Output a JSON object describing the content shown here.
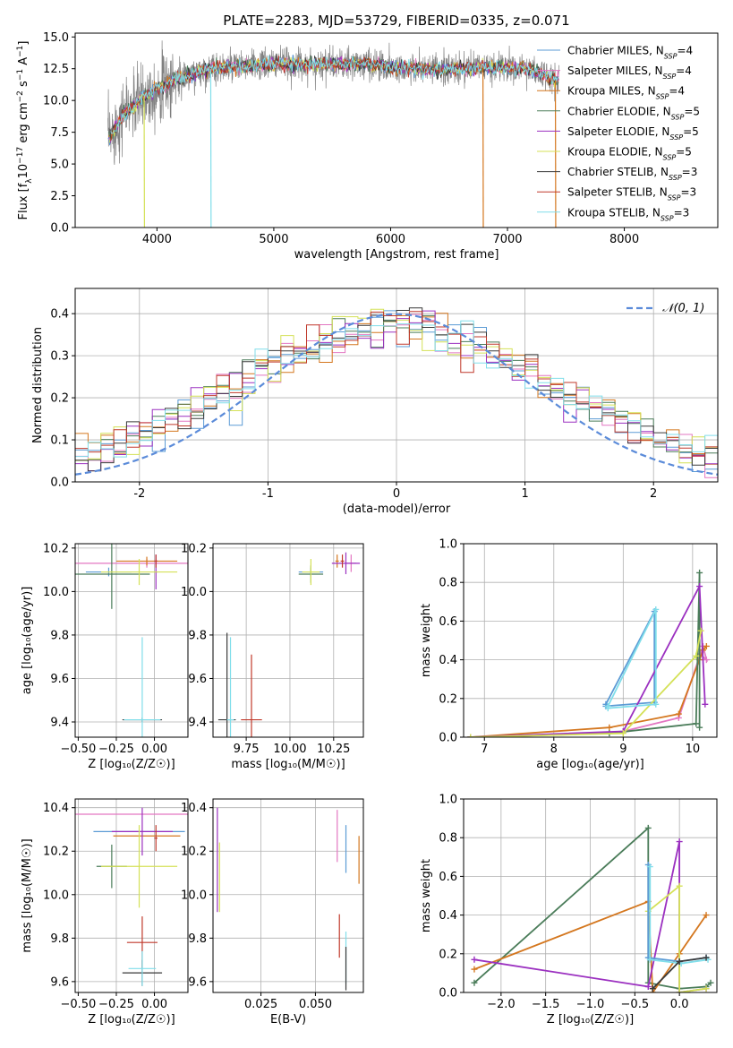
{
  "chart_data": [
    {
      "id": "spectrum",
      "type": "line",
      "title": "PLATE=2283, MJD=53729, FIBERID=0335, z=0.071",
      "xlabel": "wavelength [Angstrom, rest frame]",
      "ylabel_html": "Flux [f<tspan baseline-shift='sub' font-size='9'>λ</tspan>10<tspan baseline-shift='super' font-size='9'>−17</tspan> erg cm<tspan baseline-shift='super' font-size='9'>−2</tspan> s<tspan baseline-shift='super' font-size='9'>−1</tspan> A<tspan baseline-shift='super' font-size='9'>−1</tspan>]",
      "xlim": [
        3300,
        8800
      ],
      "ylim": [
        0,
        15.3
      ],
      "xticks": [
        4000,
        5000,
        6000,
        7000,
        8000
      ],
      "yticks": [
        0.0,
        2.5,
        5.0,
        7.5,
        10.0,
        12.5,
        15.0
      ],
      "legend": "top-right",
      "grid": false,
      "series": [
        {
          "name": "Chabrier MILES, N_SSP=4",
          "color": "#5b9bd5"
        },
        {
          "name": "Salpeter MILES, N_SSP=4",
          "color": "#e377c2"
        },
        {
          "name": "Kroupa MILES, N_SSP=4",
          "color": "#d4771f"
        },
        {
          "name": "Chabrier ELODIE, N_SSP=5",
          "color": "#4a7c59"
        },
        {
          "name": "Salpeter ELODIE, N_SSP=5",
          "color": "#9b30c0"
        },
        {
          "name": "Kroupa ELODIE, N_SSP=5",
          "color": "#d4e157"
        },
        {
          "name": "Chabrier STELIB, N_SSP=3",
          "color": "#3a3a3a"
        },
        {
          "name": "Salpeter STELIB, N_SSP=3",
          "color": "#c0392b"
        },
        {
          "name": "Kroupa STELIB, N_SSP=3",
          "color": "#80deea"
        }
      ],
      "data_color": "#808080",
      "continuum": [
        [
          3600,
          7.2
        ],
        [
          3700,
          8.8
        ],
        [
          3800,
          9.6
        ],
        [
          3900,
          10.4
        ],
        [
          4000,
          11.0
        ],
        [
          4100,
          11.3
        ],
        [
          4200,
          11.8
        ],
        [
          4300,
          12.0
        ],
        [
          4400,
          12.4
        ],
        [
          4600,
          12.6
        ],
        [
          4800,
          12.7
        ],
        [
          5000,
          12.9
        ],
        [
          5200,
          12.8
        ],
        [
          5400,
          12.9
        ],
        [
          5600,
          12.8
        ],
        [
          5800,
          12.9
        ],
        [
          6000,
          12.6
        ],
        [
          6200,
          12.5
        ],
        [
          6400,
          12.4
        ],
        [
          6600,
          12.5
        ],
        [
          6800,
          12.6
        ],
        [
          7000,
          12.6
        ],
        [
          7200,
          12.4
        ],
        [
          7400,
          11.6
        ]
      ]
    },
    {
      "id": "residuals",
      "type": "bar",
      "xlabel": "(data-model)/error",
      "ylabel": "Normed distribution",
      "xlim": [
        -2.5,
        2.5
      ],
      "ylim": [
        0,
        0.46
      ],
      "xticks": [
        -2,
        -1,
        0,
        1,
        2
      ],
      "yticks": [
        0.0,
        0.1,
        0.2,
        0.3,
        0.4
      ],
      "grid": true,
      "legend": "top-right",
      "normal_label": "𝒩(0, 1)",
      "normal_color": "#5b8bd9",
      "bin_width": 0.1
    },
    {
      "id": "age_vs_Z",
      "type": "scatter",
      "xlabel": "Z [log₁₀(Z/Z☉)]",
      "ylabel": "age  [log₁₀(age/yr)]",
      "xlim": [
        -0.52,
        0.22
      ],
      "ylim": [
        9.33,
        10.22
      ],
      "xticks": [
        -0.5,
        -0.25,
        0.0
      ],
      "xtick_labels": [
        "−0.50",
        "−0.25",
        "0.00"
      ],
      "yticks": [
        9.4,
        9.6,
        9.8,
        10.0,
        10.2
      ],
      "grid": true,
      "points": [
        {
          "x": -0.05,
          "y": 10.13,
          "xerr": 0.48,
          "yerr": 0.02,
          "color": "#e377c2"
        },
        {
          "x": -0.05,
          "y": 10.14,
          "xerr": 0.2,
          "yerr": 0.02,
          "color": "#d4771f"
        },
        {
          "x": -0.3,
          "y": 10.09,
          "xerr": 0.15,
          "yerr": 0.02,
          "color": "#5b9bd5"
        },
        {
          "x": -0.28,
          "y": 10.08,
          "xerr": 0.25,
          "yerr": 0.16,
          "color": "#4a7c59"
        },
        {
          "x": 0.01,
          "y": 10.09,
          "xerr": 0.01,
          "yerr": 0.08,
          "color": "#9b30c0"
        },
        {
          "x": -0.1,
          "y": 10.09,
          "xerr": 0.25,
          "yerr": 0.06,
          "color": "#d4e157"
        },
        {
          "x": 0.01,
          "y": 10.14,
          "xerr": 0.01,
          "yerr": 0.03,
          "color": "#c0392b"
        },
        {
          "x": -0.08,
          "y": 9.41,
          "xerr": 0.13,
          "yerr": 0.01,
          "color": "#3a3a3a"
        },
        {
          "x": -0.08,
          "y": 9.41,
          "xerr": 0.12,
          "yerr": 0.38,
          "color": "#80deea"
        }
      ]
    },
    {
      "id": "age_vs_mass",
      "type": "scatter",
      "xlabel": "mass [log₁₀(M/M☉)]",
      "ylabel": "",
      "xlim": [
        9.56,
        10.42
      ],
      "ylim": [
        9.33,
        10.22
      ],
      "xticks": [
        9.75,
        10.0,
        10.25
      ],
      "xtick_labels": [
        "9.75",
        "10.00",
        "10.25"
      ],
      "yticks": [
        9.4,
        9.6,
        9.8,
        10.0,
        10.2
      ],
      "grid": true,
      "points": [
        {
          "x": 10.35,
          "y": 10.13,
          "xerr": 0.03,
          "yerr": 0.04,
          "color": "#e377c2"
        },
        {
          "x": 10.27,
          "y": 10.14,
          "xerr": 0.01,
          "yerr": 0.03,
          "color": "#d4771f"
        },
        {
          "x": 10.12,
          "y": 10.09,
          "xerr": 0.07,
          "yerr": 0.02,
          "color": "#5b9bd5"
        },
        {
          "x": 10.12,
          "y": 10.08,
          "xerr": 0.07,
          "yerr": 0.04,
          "color": "#4a7c59"
        },
        {
          "x": 10.32,
          "y": 10.13,
          "xerr": 0.08,
          "yerr": 0.05,
          "color": "#9b30c0"
        },
        {
          "x": 10.12,
          "y": 10.09,
          "xerr": 0.05,
          "yerr": 0.06,
          "color": "#d4e157"
        },
        {
          "x": 10.3,
          "y": 10.14,
          "xerr": 0.01,
          "yerr": 0.03,
          "color": "#c0392b"
        },
        {
          "x": 9.64,
          "y": 9.41,
          "xerr": 0.05,
          "yerr": 0.4,
          "color": "#3a3a3a"
        },
        {
          "x": 9.78,
          "y": 9.41,
          "xerr": 0.06,
          "yerr": 0.3,
          "color": "#c0392b"
        },
        {
          "x": 9.66,
          "y": 9.41,
          "xerr": 0.02,
          "yerr": 0.38,
          "color": "#80deea"
        }
      ]
    },
    {
      "id": "mass_weight_vs_age",
      "type": "line",
      "xlabel": "age  [log₁₀(age/yr)]",
      "ylabel": "mass weight",
      "xlim": [
        6.7,
        10.35
      ],
      "ylim": [
        0,
        1.0
      ],
      "xticks": [
        7,
        8,
        9,
        10
      ],
      "yticks": [
        0.0,
        0.2,
        0.4,
        0.6,
        0.8,
        1.0
      ],
      "grid": true,
      "series": [
        {
          "color": "#5b9bd5",
          "x": [
            8.75,
            9.45,
            9.45,
            8.75
          ],
          "y": [
            0.17,
            0.65,
            0.18,
            0.16
          ]
        },
        {
          "color": "#e377c2",
          "x": [
            9.0,
            9.8,
            10.15,
            10.2,
            10.1
          ],
          "y": [
            0.03,
            0.1,
            0.47,
            0.4,
            0.43
          ]
        },
        {
          "color": "#d4771f",
          "x": [
            6.8,
            8.8,
            9.8,
            10.1,
            10.15,
            10.2
          ],
          "y": [
            0.0,
            0.05,
            0.12,
            0.4,
            0.45,
            0.47
          ]
        },
        {
          "color": "#4a7c59",
          "x": [
            6.8,
            8.8,
            10.05,
            10.1,
            10.1
          ],
          "y": [
            0.0,
            0.02,
            0.07,
            0.85,
            0.05
          ]
        },
        {
          "color": "#9b30c0",
          "x": [
            6.8,
            9.0,
            10.1,
            10.18
          ],
          "y": [
            0.0,
            0.03,
            0.78,
            0.17
          ]
        },
        {
          "color": "#d4e157",
          "x": [
            6.8,
            9.0,
            10.05,
            10.12
          ],
          "y": [
            0.0,
            0.02,
            0.42,
            0.55
          ]
        },
        {
          "color": "#80deea",
          "x": [
            8.78,
            9.47,
            9.47,
            8.78
          ],
          "y": [
            0.16,
            0.66,
            0.17,
            0.15
          ]
        }
      ]
    },
    {
      "id": "mass_vs_Z",
      "type": "scatter",
      "xlabel": "Z [log₁₀(Z/Z☉)]",
      "ylabel": "mass [log₁₀(M/M☉)]",
      "xlim": [
        -0.52,
        0.22
      ],
      "ylim": [
        9.55,
        10.44
      ],
      "xticks": [
        -0.5,
        -0.25,
        0.0
      ],
      "xtick_labels": [
        "−0.50",
        "−0.25",
        "0.00"
      ],
      "yticks": [
        9.6,
        9.8,
        10.0,
        10.2,
        10.4
      ],
      "grid": true,
      "points": [
        {
          "x": -0.05,
          "y": 10.37,
          "xerr": 0.48,
          "yerr": 0.0,
          "color": "#e377c2"
        },
        {
          "x": -0.05,
          "y": 10.27,
          "xerr": 0.22,
          "yerr": 0.0,
          "color": "#d4771f"
        },
        {
          "x": -0.1,
          "y": 10.29,
          "xerr": 0.3,
          "yerr": 0.0,
          "color": "#5b9bd5"
        },
        {
          "x": -0.28,
          "y": 10.13,
          "xerr": 0.1,
          "yerr": 0.1,
          "color": "#4a7c59"
        },
        {
          "x": -0.08,
          "y": 10.29,
          "xerr": 0.2,
          "yerr": 0.11,
          "color": "#9b30c0"
        },
        {
          "x": -0.1,
          "y": 10.13,
          "xerr": 0.25,
          "yerr": 0.19,
          "color": "#d4e157"
        },
        {
          "x": 0.01,
          "y": 10.26,
          "xerr": 0.01,
          "yerr": 0.06,
          "color": "#c0392b"
        },
        {
          "x": -0.08,
          "y": 9.64,
          "xerr": 0.13,
          "yerr": 0.06,
          "color": "#3a3a3a"
        },
        {
          "x": -0.08,
          "y": 9.78,
          "xerr": 0.1,
          "yerr": 0.12,
          "color": "#c0392b"
        },
        {
          "x": -0.08,
          "y": 9.66,
          "xerr": 0.09,
          "yerr": 0.08,
          "color": "#80deea"
        }
      ]
    },
    {
      "id": "mass_vs_ebv",
      "type": "scatter",
      "xlabel": "E(B-V)",
      "ylabel": "",
      "xlim": [
        0.003,
        0.072
      ],
      "ylim": [
        9.55,
        10.44
      ],
      "xticks": [
        0.025,
        0.05
      ],
      "xtick_labels": [
        "0.025",
        "0.050"
      ],
      "yticks": [
        9.6,
        9.8,
        10.0,
        10.2,
        10.4
      ],
      "grid": true,
      "points": [
        {
          "x": 0.005,
          "y": 10.16,
          "xerr": 0.0,
          "yerr": 0.24,
          "color": "#9b30c0"
        },
        {
          "x": 0.006,
          "y": 10.08,
          "xerr": 0.0,
          "yerr": 0.16,
          "color": "#d4e157"
        },
        {
          "x": 0.06,
          "y": 10.27,
          "xerr": 0.0,
          "yerr": 0.12,
          "color": "#e377c2"
        },
        {
          "x": 0.064,
          "y": 10.21,
          "xerr": 0.0,
          "yerr": 0.11,
          "color": "#5b9bd5"
        },
        {
          "x": 0.07,
          "y": 10.16,
          "xerr": 0.0,
          "yerr": 0.11,
          "color": "#d4771f"
        },
        {
          "x": 0.061,
          "y": 9.81,
          "xerr": 0.0,
          "yerr": 0.1,
          "color": "#c0392b"
        },
        {
          "x": 0.064,
          "y": 9.71,
          "xerr": 0.0,
          "yerr": 0.12,
          "color": "#80deea"
        },
        {
          "x": 0.064,
          "y": 9.66,
          "xerr": 0.0,
          "yerr": 0.1,
          "color": "#3a3a3a"
        }
      ]
    },
    {
      "id": "mass_weight_vs_Z",
      "type": "line",
      "xlabel": "Z [log₁₀(Z/Z☉)]",
      "ylabel": "mass weight",
      "xlim": [
        -2.42,
        0.42
      ],
      "ylim": [
        0,
        1.0
      ],
      "xticks": [
        -2.0,
        -1.5,
        -1.0,
        -0.5,
        0.0
      ],
      "xtick_labels": [
        "−2.0",
        "−1.5",
        "−1.0",
        "−0.5",
        "0.0"
      ],
      "yticks": [
        0.0,
        0.2,
        0.4,
        0.6,
        0.8,
        1.0
      ],
      "grid": true,
      "series": [
        {
          "color": "#4a7c59",
          "x": [
            -2.3,
            -0.35,
            -0.35,
            0.0,
            0.3,
            0.35
          ],
          "y": [
            0.05,
            0.85,
            0.05,
            0.02,
            0.03,
            0.05
          ]
        },
        {
          "color": "#d4771f",
          "x": [
            -2.3,
            -0.35,
            -0.3,
            0.0,
            0.3
          ],
          "y": [
            0.12,
            0.47,
            0.0,
            0.2,
            0.4
          ]
        },
        {
          "color": "#9b30c0",
          "x": [
            -2.3,
            -0.35,
            0.0,
            0.0,
            0.3
          ],
          "y": [
            0.17,
            0.03,
            0.78,
            0.0,
            0.02
          ]
        },
        {
          "color": "#d4e157",
          "x": [
            -0.35,
            0.0,
            0.0,
            0.3
          ],
          "y": [
            0.42,
            0.55,
            0.0,
            0.02
          ]
        },
        {
          "color": "#5b9bd5",
          "x": [
            -0.35,
            -0.35,
            0.0,
            0.3
          ],
          "y": [
            0.66,
            0.18,
            0.16,
            0.18
          ]
        },
        {
          "color": "#80deea",
          "x": [
            -0.33,
            -0.33,
            0.02,
            0.32
          ],
          "y": [
            0.65,
            0.17,
            0.15,
            0.17
          ]
        },
        {
          "color": "#3a3a3a",
          "x": [
            -0.3,
            0.0,
            0.3
          ],
          "y": [
            0.02,
            0.16,
            0.18
          ]
        }
      ]
    }
  ]
}
